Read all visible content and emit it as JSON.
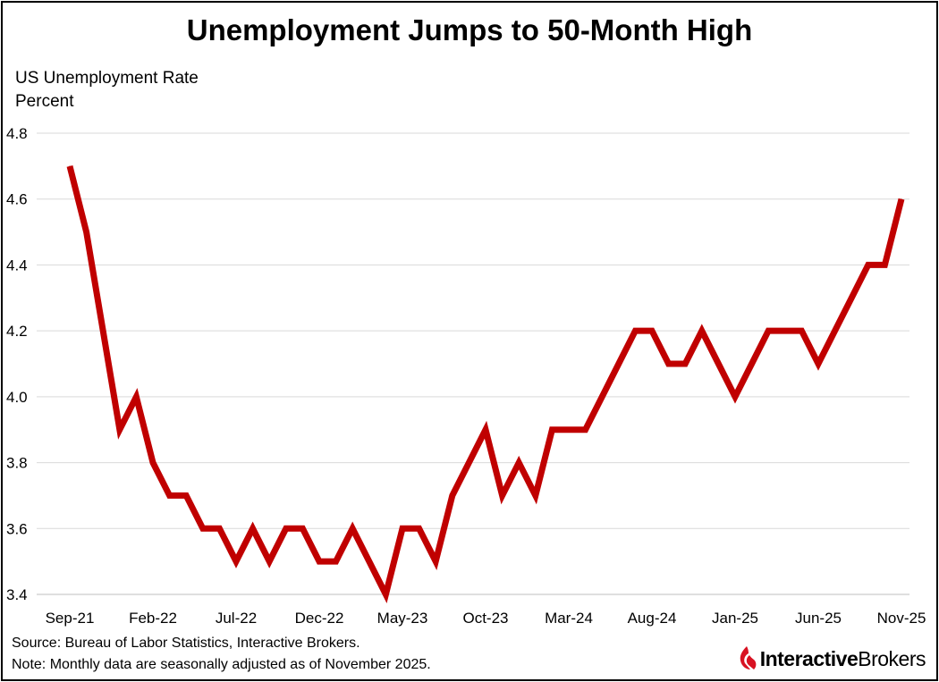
{
  "chart_data": {
    "type": "line",
    "title": "Unemployment Jumps to 50-Month High",
    "ylabel_lines": [
      "US Unemployment Rate",
      "Percent"
    ],
    "ylim": [
      3.4,
      4.8
    ],
    "yticks": [
      "3.4",
      "3.6",
      "3.8",
      "4.0",
      "4.2",
      "4.4",
      "4.6",
      "4.8"
    ],
    "xticks": [
      "Sep-21",
      "Feb-22",
      "Jul-22",
      "Dec-22",
      "May-23",
      "Oct-23",
      "Mar-24",
      "Aug-24",
      "Jan-25",
      "Jun-25",
      "Nov-25"
    ],
    "grid": "horizontal",
    "line_color": "#c00000",
    "series": [
      {
        "x": [
          "Sep-21",
          "Oct-21",
          "Nov-21",
          "Dec-21",
          "Jan-22",
          "Feb-22",
          "Mar-22",
          "Apr-22",
          "May-22",
          "Jun-22",
          "Jul-22",
          "Aug-22",
          "Sep-22",
          "Oct-22",
          "Nov-22",
          "Dec-22",
          "Jan-23",
          "Feb-23",
          "Mar-23",
          "Apr-23",
          "May-23",
          "Jun-23",
          "Jul-23",
          "Aug-23",
          "Sep-23",
          "Oct-23",
          "Nov-23",
          "Dec-23",
          "Jan-24",
          "Feb-24",
          "Mar-24",
          "Apr-24",
          "May-24",
          "Jun-24",
          "Jul-24",
          "Aug-24",
          "Sep-24",
          "Oct-24",
          "Nov-24",
          "Dec-24",
          "Jan-25",
          "Feb-25",
          "Mar-25",
          "Apr-25",
          "May-25",
          "Jun-25",
          "Jul-25",
          "Aug-25",
          "Sep-25",
          "Oct-25",
          "Nov-25"
        ],
        "values": [
          4.7,
          4.5,
          4.2,
          3.9,
          4.0,
          3.8,
          3.7,
          3.7,
          3.6,
          3.6,
          3.5,
          3.6,
          3.5,
          3.6,
          3.6,
          3.5,
          3.5,
          3.6,
          3.5,
          3.4,
          3.6,
          3.6,
          3.5,
          3.7,
          3.8,
          3.9,
          3.7,
          3.8,
          3.7,
          3.9,
          3.9,
          3.9,
          4.0,
          4.1,
          4.2,
          4.2,
          4.1,
          4.1,
          4.2,
          4.1,
          4.0,
          4.1,
          4.2,
          4.2,
          4.2,
          4.1,
          4.2,
          4.3,
          4.4,
          4.4,
          4.6
        ]
      }
    ]
  },
  "footer": {
    "source": "Source: Bureau of Labor Statistics, Interactive Brokers.",
    "note": "Note: Monthly data are seasonally adjusted as of November 2025."
  },
  "logo": {
    "text_bold": "Interactive",
    "text_regular": "Brokers",
    "brand_color": "#d81222"
  }
}
